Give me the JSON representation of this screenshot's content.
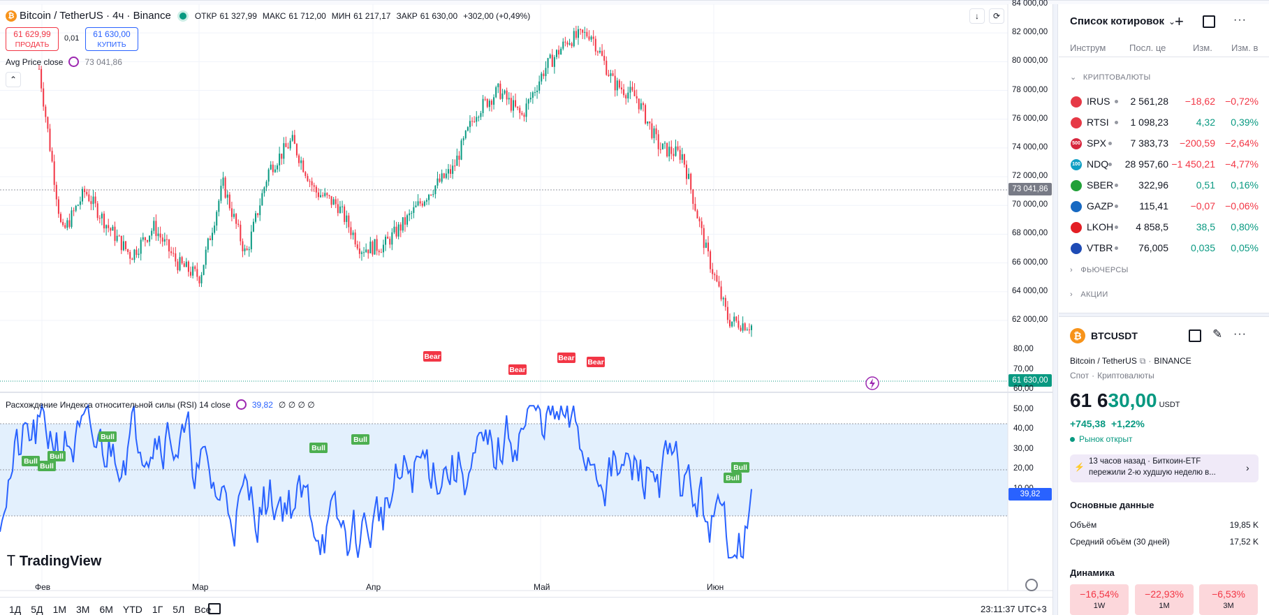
{
  "header": {
    "symbol_title": "Bitcoin / TetherUS · 4ч · Binance",
    "open_label": "ОТКР",
    "open_value": "61 327,99",
    "high_label": "МАКС",
    "high_value": "61 712,00",
    "low_label": "МИН",
    "low_value": "61 217,17",
    "close_label": "ЗАКР",
    "close_value": "61 630,00",
    "change": "+302,00 (+0,49%)"
  },
  "trade": {
    "sell_price": "61 629,99",
    "sell_label": "ПРОДАТЬ",
    "spread": "0,01",
    "buy_price": "61 630,00",
    "buy_label": "КУПИТЬ"
  },
  "indicator_avg": {
    "name": "Avg Price close",
    "value": "73 041,86"
  },
  "indicator_rsi": {
    "name": "Расхождение Индекса относительной силы (RSI) 14 close",
    "value": "39,82",
    "extras": "∅ ∅ ∅ ∅"
  },
  "price_axis": {
    "ticks": [
      "84 000,00",
      "82 000,00",
      "80 000,00",
      "78 000,00",
      "76 000,00",
      "74 000,00",
      "72 000,00",
      "70 000,00",
      "68 000,00",
      "66 000,00",
      "64 000,00",
      "62 000,00"
    ],
    "avg_marker": "73 041,86",
    "last_marker": "61 630,00"
  },
  "rsi_axis": {
    "ticks": [
      "80,00",
      "70,00",
      "60,00",
      "50,00",
      "40,00",
      "30,00",
      "20,00",
      "10,00"
    ],
    "marker": "39,82"
  },
  "time_axis": {
    "labels": [
      "Фев",
      "Мар",
      "Апр",
      "Май",
      "Июн"
    ]
  },
  "bottom_toolbar": {
    "ranges": [
      "1Д",
      "5Д",
      "1М",
      "3М",
      "6М",
      "YTD",
      "1Г",
      "5Л",
      "Все"
    ],
    "clock": "23:11:37 UTC+3"
  },
  "logo": {
    "text": "TradingView"
  },
  "chart_data": {
    "type": "candlestick",
    "title": "Bitcoin / TetherUS · 4ч · Binance",
    "x_labels": [
      "Фев",
      "Мар",
      "Апр",
      "Май",
      "Июн"
    ],
    "ylim": [
      61000,
      84000
    ],
    "close_path": [
      {
        "x": "Фев",
        "y": 79500
      },
      {
        "x": "Фев",
        "y": 68000
      },
      {
        "x": "Фев",
        "y": 71000
      },
      {
        "x": "Фев",
        "y": 68500
      },
      {
        "x": "Фев",
        "y": 66500
      },
      {
        "x": "Фев",
        "y": 68500
      },
      {
        "x": "Фев",
        "y": 66000
      },
      {
        "x": "Мар",
        "y": 65000
      },
      {
        "x": "Мар",
        "y": 71500
      },
      {
        "x": "Мар",
        "y": 66500
      },
      {
        "x": "Мар",
        "y": 72500
      },
      {
        "x": "Мар",
        "y": 74500
      },
      {
        "x": "Мар",
        "y": 71000
      },
      {
        "x": "Мар",
        "y": 70000
      },
      {
        "x": "Мар",
        "y": 67000
      },
      {
        "x": "Апр",
        "y": 67200
      },
      {
        "x": "Апр",
        "y": 69000
      },
      {
        "x": "Апр",
        "y": 71000
      },
      {
        "x": "Апр",
        "y": 72500
      },
      {
        "x": "Апр",
        "y": 76500
      },
      {
        "x": "Апр",
        "y": 78000
      },
      {
        "x": "Апр",
        "y": 76200
      },
      {
        "x": "Май",
        "y": 79500
      },
      {
        "x": "Май",
        "y": 81500
      },
      {
        "x": "Май",
        "y": 82000
      },
      {
        "x": "Май",
        "y": 78500
      },
      {
        "x": "Май",
        "y": 77500
      },
      {
        "x": "Май",
        "y": 74000
      },
      {
        "x": "Июн",
        "y": 73500
      },
      {
        "x": "Июн",
        "y": 67000
      },
      {
        "x": "Июн",
        "y": 62000
      },
      {
        "x": "Июн",
        "y": 61630
      }
    ],
    "avg_price_line": 73041.86,
    "last_price": 61630.0,
    "rsi": {
      "ylim": [
        5,
        82
      ],
      "upper_band": 70,
      "middle": 50,
      "lower_band": 30,
      "last": 39.82,
      "signals": [
        "Bull",
        "Bull",
        "Bull",
        "Bull",
        "Bull",
        "Bull",
        "Bear",
        "Bear",
        "Bear",
        "Bear",
        "Bull",
        "Bull"
      ]
    },
    "colors": {
      "up": "#089981",
      "down": "#f23645",
      "rsi": "#2962ff",
      "band_fill": "#e3f0fd"
    }
  },
  "watchlist": {
    "title": "Список котировок",
    "columns": [
      "Инструм",
      "Посл. це",
      "Изм.",
      "Изм. в"
    ],
    "section_crypto": "КРИПТОВАЛЮТЫ",
    "rows": [
      {
        "sym": "IRUS",
        "last": "2 561,28",
        "chg": "−18,62",
        "pct": "−0,72%",
        "dir": "down",
        "color": "#e63946",
        "badge": ""
      },
      {
        "sym": "RTSI",
        "last": "1 098,23",
        "chg": "4,32",
        "pct": "0,39%",
        "dir": "up",
        "color": "#e63946",
        "badge": ""
      },
      {
        "sym": "SPX",
        "last": "7 383,73",
        "chg": "−200,59",
        "pct": "−2,64%",
        "dir": "down",
        "color": "#d7263d",
        "badge": "500"
      },
      {
        "sym": "NDQ",
        "last": "28 957,60",
        "chg": "−1 450,21",
        "pct": "−4,77%",
        "dir": "down",
        "color": "#0f9fc4",
        "badge": "100"
      },
      {
        "sym": "SBER",
        "last": "322,96",
        "chg": "0,51",
        "pct": "0,16%",
        "dir": "up",
        "color": "#21a038",
        "badge": ""
      },
      {
        "sym": "GAZP",
        "last": "115,41",
        "chg": "−0,07",
        "pct": "−0,06%",
        "dir": "down",
        "color": "#1769c2",
        "badge": ""
      },
      {
        "sym": "LKOH",
        "last": "4 858,5",
        "chg": "38,5",
        "pct": "0,80%",
        "dir": "up",
        "color": "#e31e24",
        "badge": ""
      },
      {
        "sym": "VTBR",
        "last": "76,005",
        "chg": "0,035",
        "pct": "0,05%",
        "dir": "up",
        "color": "#1e4bb5",
        "badge": ""
      }
    ],
    "section_futures": "ФЬЮЧЕРСЫ",
    "section_stocks": "АКЦИИ"
  },
  "details": {
    "symbol": "BTCUSDT",
    "name": "Bitcoin / TetherUS",
    "exchange": "BINANCE",
    "type": "Спот",
    "category": "Криптовалюты",
    "price_major": "61 6",
    "price_minor": "30,00",
    "currency": "USDT",
    "change": "+745,38",
    "change_pct": "+1,22%",
    "market_status": "Рынок открыт",
    "news_time": "13 часов назад",
    "news_source": "Биткоин-ETF",
    "news_text": "пережили 2-ю худшую неделю в...",
    "key_data_title": "Основные данные",
    "volume_label": "Объём",
    "volume_value": "19,85 K",
    "avg_volume_label": "Средний объём (30 дней)",
    "avg_volume_value": "17,52 K",
    "dynamics_title": "Динамика",
    "dynamics": [
      {
        "value": "−16,54%",
        "period": "1W"
      },
      {
        "value": "−22,93%",
        "period": "1M"
      },
      {
        "value": "−6,53%",
        "period": "3M"
      }
    ]
  }
}
